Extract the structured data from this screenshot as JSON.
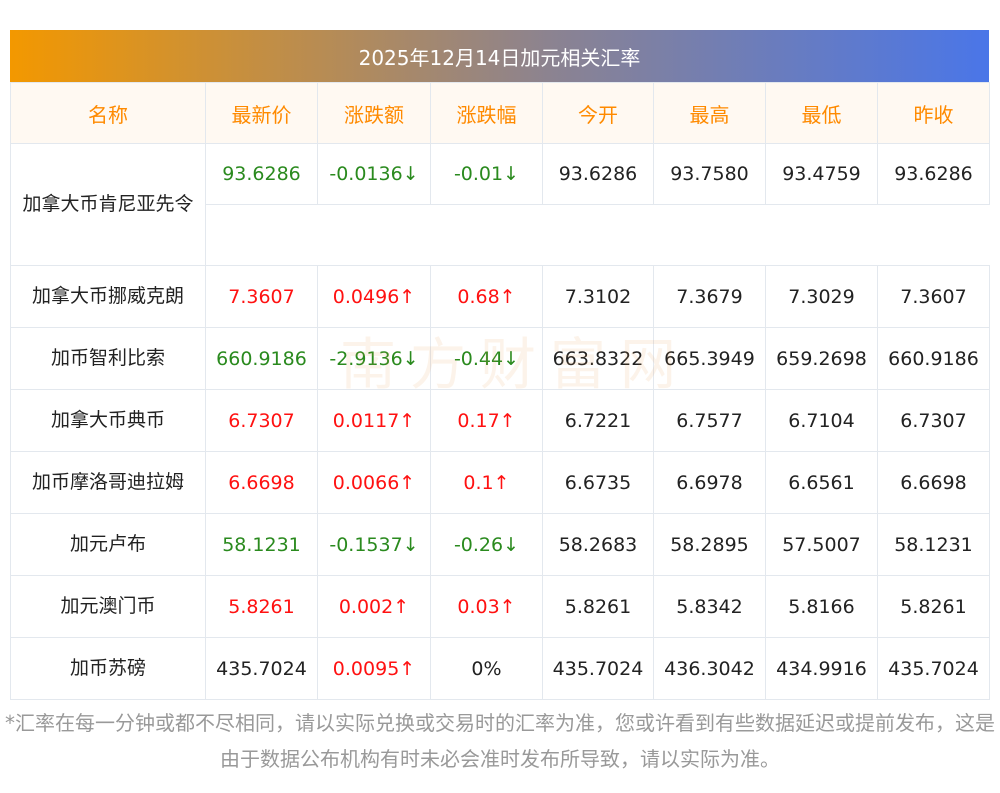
{
  "title": "2025年12月14日加元相关汇率",
  "headers": [
    "名称",
    "最新价",
    "涨跌额",
    "涨跌幅",
    "今开",
    "最高",
    "最低",
    "昨收"
  ],
  "rows": [
    {
      "name": "加拿大币肯尼亚先令",
      "latest": "93.6286",
      "change": "-0.0136↓",
      "pct": "-0.01↓",
      "open": "93.6286",
      "high": "93.7580",
      "low": "93.4759",
      "prev": "93.6286",
      "dir": "down"
    },
    {
      "name": "加拿大币挪威克朗",
      "latest": "7.3607",
      "change": "0.0496↑",
      "pct": "0.68↑",
      "open": "7.3102",
      "high": "7.3679",
      "low": "7.3029",
      "prev": "7.3607",
      "dir": "up"
    },
    {
      "name": "加币智利比索",
      "latest": "660.9186",
      "change": "-2.9136↓",
      "pct": "-0.44↓",
      "open": "663.8322",
      "high": "665.3949",
      "low": "659.2698",
      "prev": "660.9186",
      "dir": "down"
    },
    {
      "name": "加拿大币典币",
      "latest": "6.7307",
      "change": "0.0117↑",
      "pct": "0.17↑",
      "open": "6.7221",
      "high": "6.7577",
      "low": "6.7104",
      "prev": "6.7307",
      "dir": "up"
    },
    {
      "name": "加币摩洛哥迪拉姆",
      "latest": "6.6698",
      "change": "0.0066↑",
      "pct": "0.1↑",
      "open": "6.6735",
      "high": "6.6978",
      "low": "6.6561",
      "prev": "6.6698",
      "dir": "up"
    },
    {
      "name": "加元卢布",
      "latest": "58.1231",
      "change": "-0.1537↓",
      "pct": "-0.26↓",
      "open": "58.2683",
      "high": "58.2895",
      "low": "57.5007",
      "prev": "58.1231",
      "dir": "down"
    },
    {
      "name": "加元澳门币",
      "latest": "5.8261",
      "change": "0.002↑",
      "pct": "0.03↑",
      "open": "5.8261",
      "high": "5.8342",
      "low": "5.8166",
      "prev": "5.8261",
      "dir": "up"
    },
    {
      "name": "加币苏磅",
      "latest": "435.7024",
      "change": "0.0095↑",
      "pct": "0%",
      "open": "435.7024",
      "high": "436.3042",
      "low": "434.9916",
      "prev": "435.7024",
      "dir": "flat"
    }
  ],
  "watermark": "南方财富网 southmoney.com",
  "note": "*汇率在每一分钟或都不尽相同，请以实际兑换或交易时的汇率为准，您或许看到有些数据延迟或提前发布，这是由于数据公布机构有时未必会准时发布所导致，请以实际为准。",
  "colors": {
    "up": "#ff1111",
    "down": "#2a8a1e",
    "header": "#ff8a00"
  }
}
